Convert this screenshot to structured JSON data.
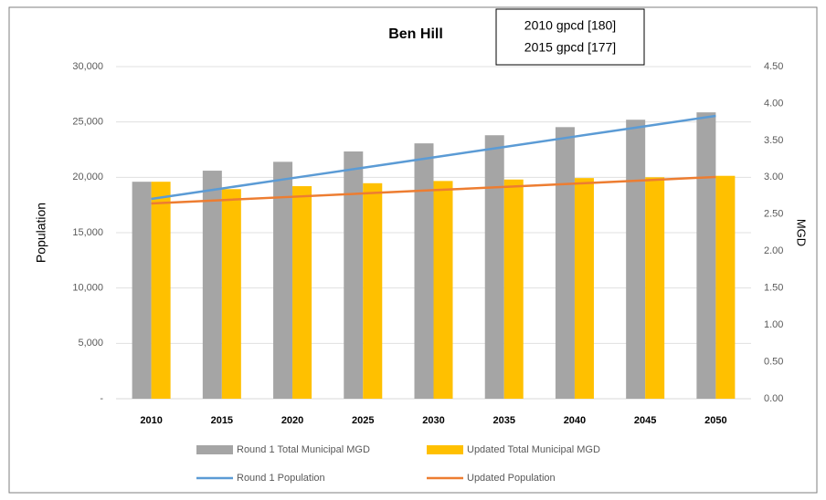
{
  "chart_data": {
    "type": "bar",
    "title": "Ben Hill",
    "annotations": [
      "2010 gpcd [180]",
      "2015 gpcd [177]"
    ],
    "categories": [
      "2010",
      "2015",
      "2020",
      "2025",
      "2030",
      "2035",
      "2040",
      "2045",
      "2050"
    ],
    "ylabel": "Population",
    "y2label": "MGD",
    "ylim": [
      0,
      30000
    ],
    "yticks": [
      {
        "value": 0,
        "label": "-"
      },
      {
        "value": 5000,
        "label": "5,000"
      },
      {
        "value": 10000,
        "label": "10,000"
      },
      {
        "value": 15000,
        "label": "15,000"
      },
      {
        "value": 20000,
        "label": "20,000"
      },
      {
        "value": 25000,
        "label": "25,000"
      },
      {
        "value": 30000,
        "label": "30,000"
      }
    ],
    "y2lim": [
      0,
      4.5
    ],
    "y2ticks": [
      {
        "value": 0,
        "label": "0.00"
      },
      {
        "value": 0.5,
        "label": "0.50"
      },
      {
        "value": 1,
        "label": "1.00"
      },
      {
        "value": 1.5,
        "label": "1.50"
      },
      {
        "value": 2,
        "label": "2.00"
      },
      {
        "value": 2.5,
        "label": "2.50"
      },
      {
        "value": 3,
        "label": "3.00"
      },
      {
        "value": 3.5,
        "label": "3.50"
      },
      {
        "value": 4,
        "label": "4.00"
      },
      {
        "value": 4.5,
        "label": "4.50"
      }
    ],
    "grid": true,
    "legend": "bottom",
    "series": [
      {
        "name": "Round 1 Total Municipal MGD",
        "type": "bar",
        "axis": "y2",
        "color": "#a5a5a5",
        "values": [
          2.94,
          3.09,
          3.21,
          3.35,
          3.46,
          3.57,
          3.68,
          3.78,
          3.88
        ]
      },
      {
        "name": "Updated Total Municipal MGD",
        "type": "bar",
        "axis": "y2",
        "color": "#ffc000",
        "values": [
          2.94,
          2.84,
          2.88,
          2.92,
          2.95,
          2.97,
          2.99,
          3.0,
          3.02
        ]
      },
      {
        "name": "Round 1 Population",
        "type": "line",
        "axis": "y",
        "color": "#5b9bd5",
        "values": [
          18050,
          18990,
          19930,
          20860,
          21800,
          22740,
          23680,
          24610,
          25550
        ]
      },
      {
        "name": "Updated Population",
        "type": "line",
        "axis": "y",
        "color": "#ed7d31",
        "values": [
          17640,
          17940,
          18240,
          18540,
          18840,
          19130,
          19430,
          19730,
          20030
        ]
      }
    ]
  }
}
